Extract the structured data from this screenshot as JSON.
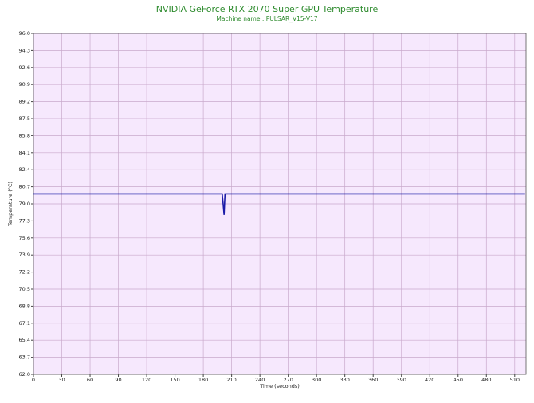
{
  "chart_data": {
    "type": "line",
    "title": "NVIDIA GeForce RTX 2070 Super GPU Temperature",
    "subtitle": "Machine name : PULSAR_V15-V17",
    "x_label": "Time (seconds)",
    "y_label": "Temperature (°C)",
    "x": [
      0,
      200,
      201,
      202,
      203,
      521
    ],
    "series": [
      {
        "name": "GPU Temperature",
        "color": "#1c1ca8",
        "values": [
          80,
          80,
          79,
          77.9,
          80,
          80
        ]
      }
    ],
    "xlim": [
      0,
      522
    ],
    "xticks": [
      0,
      30,
      60,
      90,
      120,
      150,
      180,
      210,
      240,
      270,
      300,
      330,
      360,
      390,
      420,
      450,
      480,
      510
    ],
    "ylim": [
      62,
      96
    ],
    "yticks": [
      {
        "value": 62,
        "label": "62.0"
      },
      63.7,
      65.4,
      67.1,
      68.8,
      70.5,
      72.2,
      73.9,
      75.6,
      77.3,
      {
        "value": 79,
        "label": "79.0"
      },
      80.7,
      82.4,
      84.1,
      85.8,
      87.5,
      89.2,
      90.9,
      92.6,
      94.3,
      {
        "value": 96,
        "label": "96.0"
      }
    ],
    "grid": true,
    "plot_background": "#f6e8fd",
    "grid_color": "#c9a9cc",
    "title_color": "#2e8b2e"
  }
}
